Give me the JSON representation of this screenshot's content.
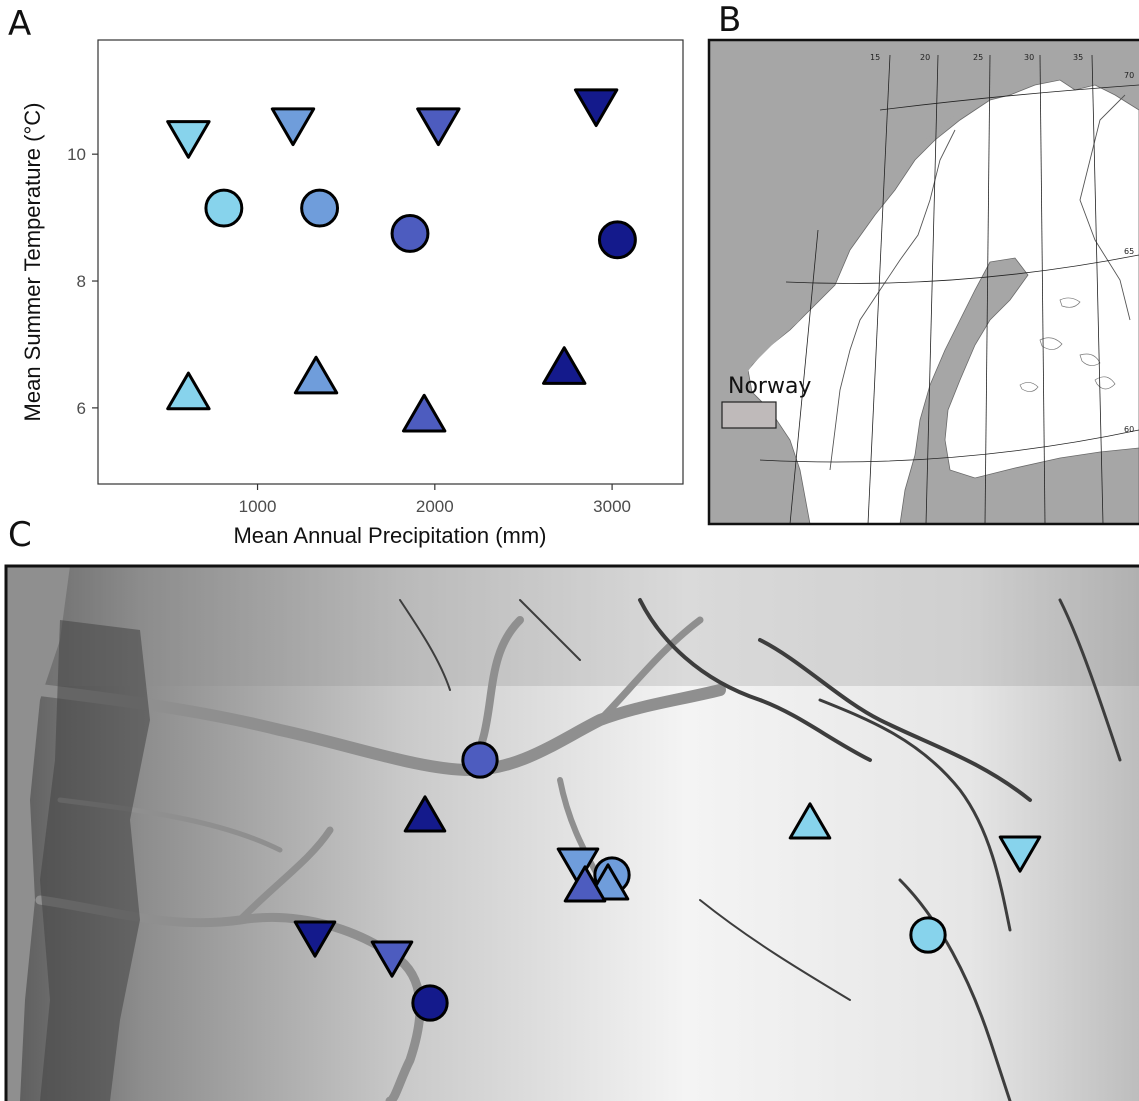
{
  "panels": {
    "a_label": "A",
    "b_label": "B",
    "c_label": "C"
  },
  "chart_data": {
    "type": "scatter",
    "xlabel": "Mean Annual Precipitation (mm)",
    "ylabel": "Mean Summer Temperature (°C)",
    "xlim": [
      100,
      3400
    ],
    "ylim": [
      4.8,
      11.8
    ],
    "x_ticks": [
      1000,
      2000,
      3000
    ],
    "y_ticks": [
      6,
      8,
      10
    ],
    "grid": false,
    "points": [
      {
        "x": 610,
        "y": 10.3,
        "shape": "triangle-down",
        "color": "#87d3ec"
      },
      {
        "x": 1200,
        "y": 10.5,
        "shape": "triangle-down",
        "color": "#6f9ddb"
      },
      {
        "x": 2020,
        "y": 10.5,
        "shape": "triangle-down",
        "color": "#4d5cbf"
      },
      {
        "x": 2910,
        "y": 10.8,
        "shape": "triangle-down",
        "color": "#141a8c"
      },
      {
        "x": 810,
        "y": 9.15,
        "shape": "circle",
        "color": "#87d3ec"
      },
      {
        "x": 1350,
        "y": 9.15,
        "shape": "circle",
        "color": "#6f9ddb"
      },
      {
        "x": 1860,
        "y": 8.75,
        "shape": "circle",
        "color": "#4d5cbf"
      },
      {
        "x": 3030,
        "y": 8.65,
        "shape": "circle",
        "color": "#141a8c"
      },
      {
        "x": 610,
        "y": 6.2,
        "shape": "triangle-up",
        "color": "#87d3ec"
      },
      {
        "x": 1330,
        "y": 6.45,
        "shape": "triangle-up",
        "color": "#6f9ddb"
      },
      {
        "x": 1940,
        "y": 5.85,
        "shape": "triangle-up",
        "color": "#4d5cbf"
      },
      {
        "x": 2730,
        "y": 6.6,
        "shape": "triangle-up",
        "color": "#141a8c"
      }
    ]
  },
  "inset_map": {
    "legend_label": "Norway",
    "longitude_labels": [
      "15",
      "20",
      "25",
      "30",
      "35",
      "70"
    ],
    "latitude_labels": [
      "65",
      "60"
    ],
    "colors": {
      "land_other": "#ffffff",
      "norway_sea": "#a6a6a6",
      "legend_box": "#bfbaba"
    }
  },
  "site_map": {
    "colors": {
      "water": "#8f8f8f",
      "light_blue": "#87d3ec",
      "mid_blue": "#6f9ddb",
      "blue": "#4d5cbf",
      "dark_blue": "#141a8c"
    },
    "sites": [
      {
        "shape": "circle",
        "color": "#4d5cbf"
      },
      {
        "shape": "triangle-up",
        "color": "#141a8c"
      },
      {
        "shape": "triangle-down",
        "color": "#141a8c"
      },
      {
        "shape": "triangle-down",
        "color": "#4d5cbf"
      },
      {
        "shape": "circle",
        "color": "#141a8c"
      },
      {
        "shape": "triangle-down",
        "color": "#6f9ddb"
      },
      {
        "shape": "circle",
        "color": "#6f9ddb"
      },
      {
        "shape": "triangle-up",
        "color": "#6f9ddb"
      },
      {
        "shape": "triangle-up",
        "color": "#4d5cbf"
      },
      {
        "shape": "triangle-up",
        "color": "#87d3ec"
      },
      {
        "shape": "triangle-down",
        "color": "#87d3ec"
      },
      {
        "shape": "circle",
        "color": "#87d3ec"
      }
    ]
  }
}
